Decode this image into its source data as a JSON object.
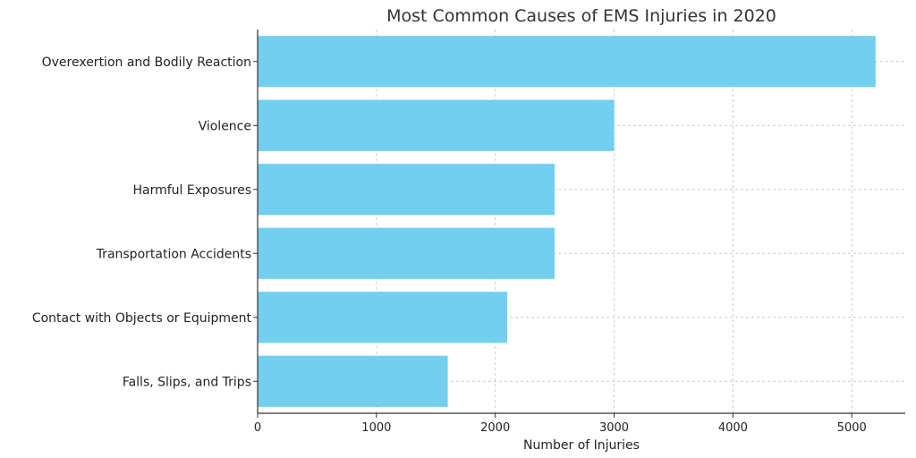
{
  "chart_data": {
    "type": "bar",
    "orientation": "horizontal",
    "title": "Most Common Causes of EMS Injuries in 2020",
    "xlabel": "Number of Injuries",
    "ylabel": "",
    "categories": [
      "Overexertion and Bodily Reaction",
      "Violence",
      "Harmful Exposures",
      "Transportation Accidents",
      "Contact with Objects or Equipment",
      "Falls, Slips, and Trips"
    ],
    "values": [
      5200,
      3000,
      2500,
      2500,
      2100,
      1600
    ],
    "xlim": [
      0,
      5450
    ],
    "xticks": [
      0,
      1000,
      2000,
      3000,
      4000,
      5000
    ],
    "grid": true,
    "bar_color": "#72cfee"
  }
}
